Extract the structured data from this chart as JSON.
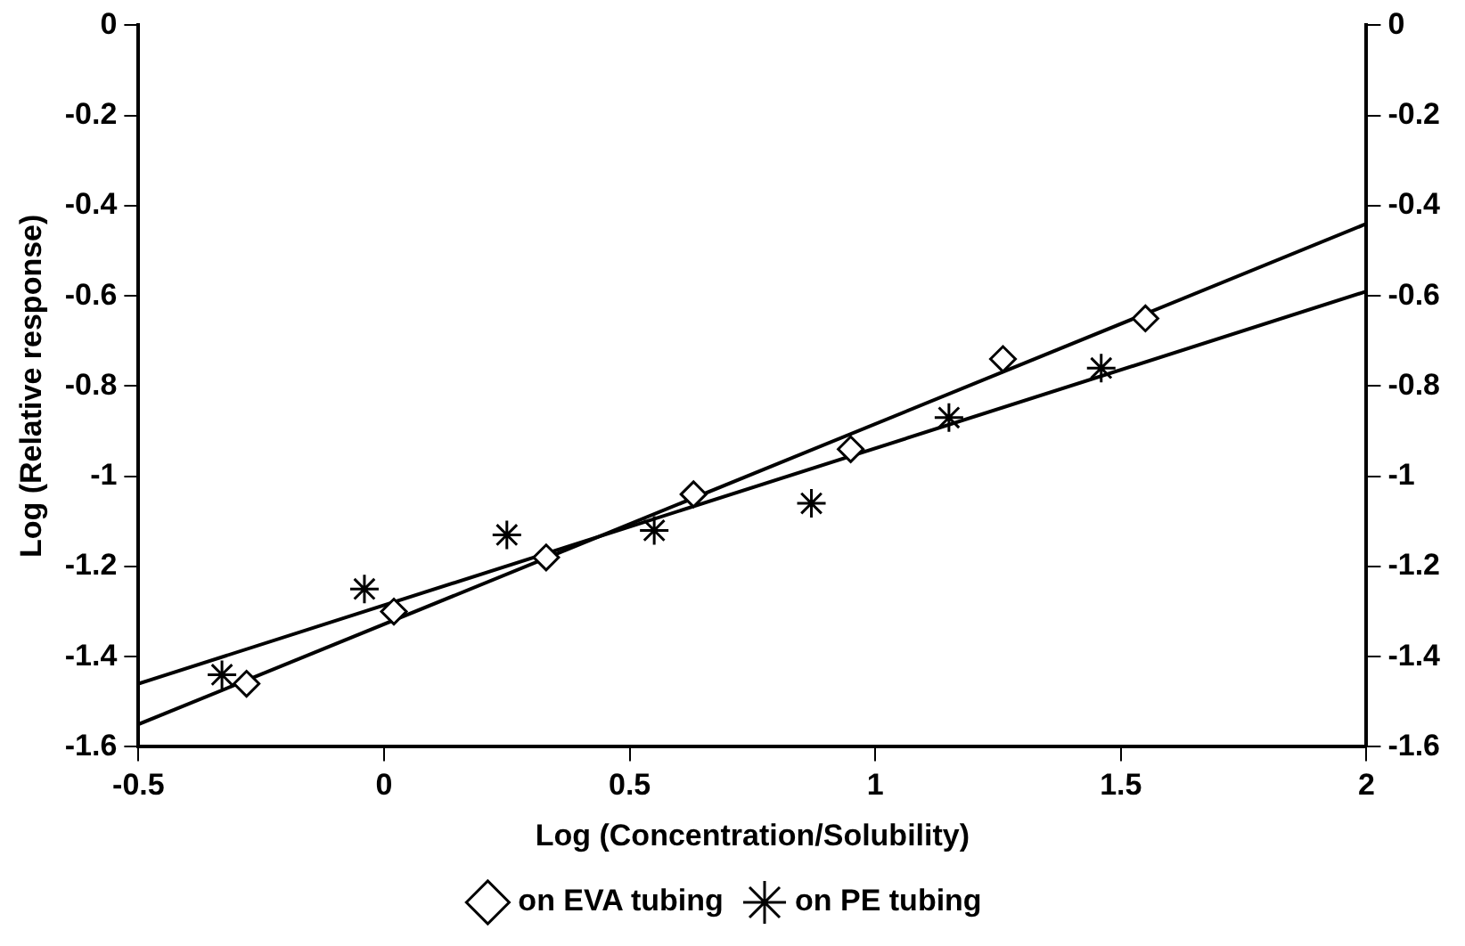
{
  "chart_data": {
    "type": "scatter",
    "xlabel": "Log (Concentration/Solubility)",
    "ylabel": "Log (Relative response)",
    "xlim": [
      -0.5,
      2
    ],
    "xticks": [
      -0.5,
      0,
      0.5,
      1,
      1.5,
      2
    ],
    "ylim": [
      -1.6,
      0
    ],
    "yticks": [
      -1.6,
      -1.4,
      -1.2,
      -1,
      -0.8,
      -0.6,
      -0.4,
      -0.2,
      0
    ],
    "y2lim": [
      -1.6,
      0
    ],
    "y2ticks": [
      -1.6,
      -1.4,
      -1.2,
      -1,
      -0.8,
      -0.6,
      -0.4,
      -0.2,
      0
    ],
    "grid": false,
    "legend": "bottom",
    "series": [
      {
        "name": "on EVA tubing",
        "color": "#000000",
        "marker": "diamond",
        "x": [
          -0.28,
          0.02,
          0.33,
          0.63,
          0.95,
          1.26,
          1.55
        ],
        "values": [
          -1.46,
          -1.3,
          -1.18,
          -1.04,
          -0.94,
          -0.74,
          -0.65
        ]
      },
      {
        "name": "on PE tubing",
        "color": "#000000",
        "marker": "cross",
        "x": [
          -0.33,
          -0.04,
          0.25,
          0.55,
          0.87,
          1.15,
          1.46
        ],
        "values": [
          -1.44,
          -1.25,
          -1.13,
          -1.12,
          -1.06,
          -0.87,
          -0.76
        ]
      },
      {
        "type": "line",
        "color": "#000000",
        "marker": "none",
        "line_style": "solid",
        "x": [
          -0.5,
          2
        ],
        "values": [
          -1.55,
          -0.44
        ]
      },
      {
        "type": "line",
        "color": "#000000",
        "marker": "none",
        "line_style": "solid",
        "x": [
          -0.5,
          2
        ],
        "values": [
          -1.46,
          -0.59
        ]
      }
    ]
  }
}
